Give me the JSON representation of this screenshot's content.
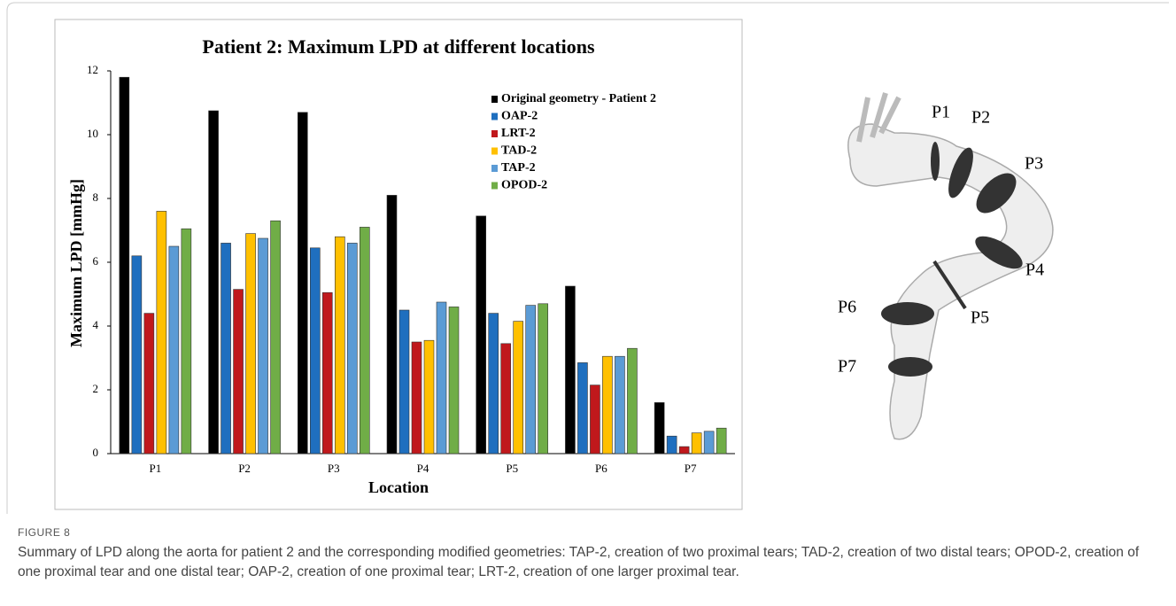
{
  "chart_data": {
    "type": "bar",
    "title": "Patient 2: Maximum LPD at different locations",
    "x_label": "Location",
    "y_label": "Maximum LPD [mmHg]",
    "categories": [
      "P1",
      "P2",
      "P3",
      "P4",
      "P5",
      "P6",
      "P7"
    ],
    "series": [
      {
        "name": "Original geometry - Patient 2",
        "color": "#000000",
        "values": [
          11.8,
          10.75,
          10.7,
          8.1,
          7.45,
          5.25,
          1.6
        ]
      },
      {
        "name": "OAP-2",
        "color": "#1f6fbf",
        "values": [
          6.2,
          6.6,
          6.45,
          4.5,
          4.4,
          2.85,
          0.55
        ]
      },
      {
        "name": "LRT-2",
        "color": "#c0181c",
        "values": [
          4.4,
          5.15,
          5.05,
          3.5,
          3.45,
          2.15,
          0.22
        ]
      },
      {
        "name": "TAD-2",
        "color": "#ffc000",
        "values": [
          7.6,
          6.9,
          6.8,
          3.55,
          4.15,
          3.05,
          0.65
        ]
      },
      {
        "name": "TAP-2",
        "color": "#5b9bd5",
        "values": [
          6.5,
          6.75,
          6.6,
          4.75,
          4.65,
          3.05,
          0.7
        ]
      },
      {
        "name": "OPOD-2",
        "color": "#70ad47",
        "values": [
          7.05,
          7.3,
          7.1,
          4.6,
          4.7,
          3.3,
          0.8
        ]
      }
    ],
    "ylim": [
      0,
      12
    ],
    "yticks": [
      0,
      2,
      4,
      6,
      8,
      10,
      12
    ],
    "grid": false,
    "legend": "upper right"
  },
  "diagram": {
    "labels": [
      "P1",
      "P2",
      "P3",
      "P4",
      "P5",
      "P6",
      "P7"
    ]
  },
  "figure": {
    "label": "FIGURE 8",
    "caption": "Summary of LPD along the aorta for patient 2 and the corresponding modified geometries: TAP-2, creation of two proximal tears; TAD-2, creation of two distal tears; OPOD-2, creation of one proximal tear and one distal tear; OAP-2, creation of one proximal tear; LRT-2, creation of one larger proximal tear."
  }
}
